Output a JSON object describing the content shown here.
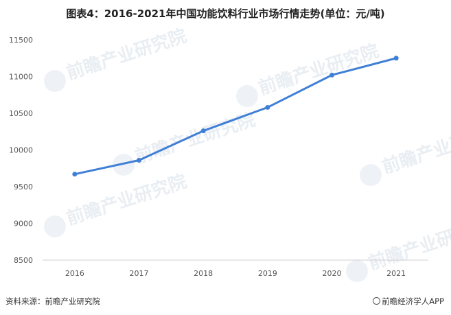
{
  "chart_data": {
    "type": "line",
    "title": "图表4：2016-2021年中国功能饮料行业市场行情走势(单位：元/吨)",
    "categories": [
      "2016",
      "2017",
      "2018",
      "2019",
      "2020",
      "2021"
    ],
    "series": [
      {
        "values": [
          9670,
          9860,
          10260,
          10580,
          11020,
          11250
        ]
      }
    ],
    "ylim": [
      8500,
      11500
    ],
    "yticks": [
      8500,
      9000,
      9500,
      10000,
      10500,
      11000,
      11500
    ],
    "line_color": "#3f7fd6",
    "grid": false,
    "legend": "none"
  },
  "watermark_text": "前瞻产业研究院",
  "footer": {
    "source": "资料来源：前瞻产业研究院",
    "brand": "前瞻经济学人APP"
  }
}
